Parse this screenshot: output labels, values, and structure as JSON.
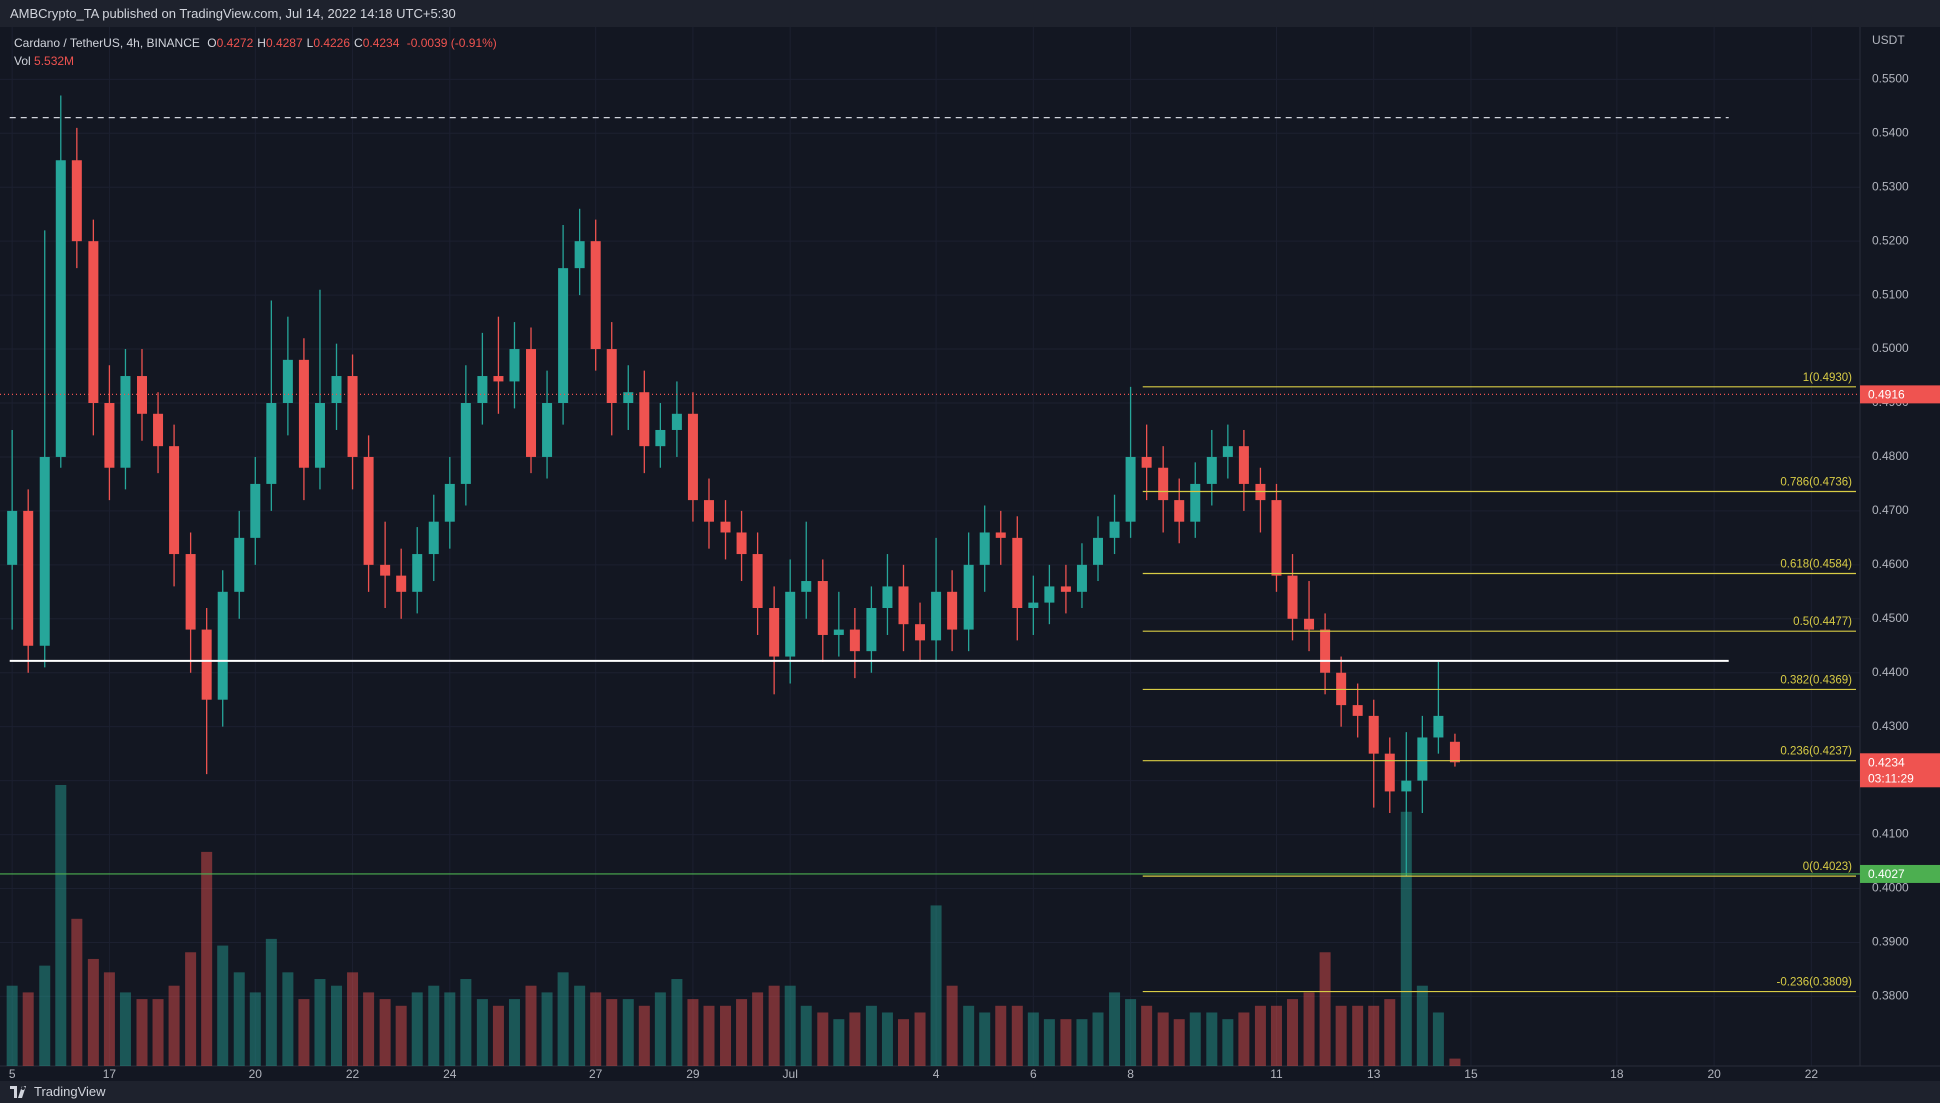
{
  "header": {
    "publisher": "AMBCrypto_TA published on TradingView.com, Jul 14, 2022 14:18 UTC+5:30"
  },
  "legend": {
    "symbol": "Cardano / TetherUS, 4h, BINANCE",
    "ohlc": [
      {
        "label": "O",
        "value": 0.4272
      },
      {
        "label": "H",
        "value": 0.4287
      },
      {
        "label": "L",
        "value": 0.4226
      },
      {
        "label": "C",
        "value": 0.4234
      }
    ],
    "change": "-0.0039 (-0.91%)",
    "volume_label": "Vol",
    "volume_value": "5.532M"
  },
  "footer": {
    "brand": "TradingView"
  },
  "chart_data": {
    "type": "candlestick",
    "currency": "USDT",
    "up_color": "#26a69a",
    "down_color": "#ef5350",
    "grid": true,
    "xlim": [
      -0.25,
      38
    ],
    "ylim": [
      0.3671,
      0.5597
    ],
    "xticks": [
      {
        "value": 0,
        "label": "5"
      },
      {
        "value": 2,
        "label": "17"
      },
      {
        "value": 5,
        "label": "20"
      },
      {
        "value": 7,
        "label": "22"
      },
      {
        "value": 9,
        "label": "24"
      },
      {
        "value": 12,
        "label": "27"
      },
      {
        "value": 14,
        "label": "29"
      },
      {
        "value": 16,
        "label": "Jul"
      },
      {
        "value": 19,
        "label": "4"
      },
      {
        "value": 21,
        "label": "6"
      },
      {
        "value": 23,
        "label": "8"
      },
      {
        "value": 26,
        "label": "11"
      },
      {
        "value": 28,
        "label": "13"
      },
      {
        "value": 30,
        "label": "15"
      },
      {
        "value": 33,
        "label": "18"
      },
      {
        "value": 35,
        "label": "20"
      },
      {
        "value": 37,
        "label": "22"
      }
    ],
    "yticks": [
      {
        "value": 0.38,
        "label": "0.3800"
      },
      {
        "value": 0.39,
        "label": "0.3900"
      },
      {
        "value": 0.4,
        "label": "0.4000"
      },
      {
        "value": 0.41,
        "label": "0.4100"
      },
      {
        "value": 0.42,
        "label": "0.4200"
      },
      {
        "value": 0.43,
        "label": "0.4300"
      },
      {
        "value": 0.44,
        "label": "0.4400"
      },
      {
        "value": 0.45,
        "label": "0.4500"
      },
      {
        "value": 0.46,
        "label": "0.4600"
      },
      {
        "value": 0.47,
        "label": "0.4700"
      },
      {
        "value": 0.48,
        "label": "0.4800"
      },
      {
        "value": 0.49,
        "label": "0.4900"
      },
      {
        "value": 0.5,
        "label": "0.5000"
      },
      {
        "value": 0.51,
        "label": "0.5100"
      },
      {
        "value": 0.52,
        "label": "0.5200"
      },
      {
        "value": 0.53,
        "label": "0.5300"
      },
      {
        "value": 0.54,
        "label": "0.5400"
      },
      {
        "value": 0.55,
        "label": "0.5500"
      }
    ],
    "x": [
      0,
      0.33,
      0.67,
      1,
      1.33,
      1.67,
      2,
      2.33,
      2.67,
      3,
      3.33,
      3.67,
      4,
      4.33,
      4.67,
      5,
      5.33,
      5.67,
      6,
      6.33,
      6.67,
      7,
      7.33,
      7.67,
      8,
      8.33,
      8.67,
      9,
      9.33,
      9.67,
      10,
      10.33,
      10.67,
      11,
      11.33,
      11.67,
      12,
      12.33,
      12.67,
      13,
      13.33,
      13.67,
      14,
      14.33,
      14.67,
      15,
      15.33,
      15.67,
      16,
      16.33,
      16.67,
      17,
      17.33,
      17.67,
      18,
      18.33,
      18.67,
      19,
      19.33,
      19.67,
      20,
      20.33,
      20.67,
      21,
      21.33,
      21.67,
      22,
      22.33,
      22.67,
      23,
      23.33,
      23.67,
      24,
      24.33,
      24.67,
      25,
      25.33,
      25.67,
      26,
      26.33,
      26.67,
      27,
      27.33,
      27.67,
      28,
      28.33,
      28.67,
      29,
      29.33,
      29.67
    ],
    "ohlc": [
      [
        0.46,
        0.485,
        0.448,
        0.47
      ],
      [
        0.47,
        0.474,
        0.44,
        0.445
      ],
      [
        0.445,
        0.522,
        0.441,
        0.48
      ],
      [
        0.48,
        0.547,
        0.478,
        0.535
      ],
      [
        0.535,
        0.541,
        0.515,
        0.52
      ],
      [
        0.52,
        0.524,
        0.484,
        0.49
      ],
      [
        0.49,
        0.497,
        0.472,
        0.478
      ],
      [
        0.478,
        0.5,
        0.474,
        0.495
      ],
      [
        0.495,
        0.5,
        0.483,
        0.488
      ],
      [
        0.488,
        0.492,
        0.477,
        0.482
      ],
      [
        0.482,
        0.486,
        0.456,
        0.462
      ],
      [
        0.462,
        0.466,
        0.44,
        0.448
      ],
      [
        0.448,
        0.452,
        0.4212,
        0.435
      ],
      [
        0.435,
        0.459,
        0.43,
        0.455
      ],
      [
        0.455,
        0.47,
        0.45,
        0.465
      ],
      [
        0.465,
        0.48,
        0.46,
        0.475
      ],
      [
        0.475,
        0.509,
        0.47,
        0.49
      ],
      [
        0.49,
        0.506,
        0.484,
        0.498
      ],
      [
        0.498,
        0.502,
        0.472,
        0.478
      ],
      [
        0.478,
        0.511,
        0.474,
        0.49
      ],
      [
        0.49,
        0.501,
        0.485,
        0.495
      ],
      [
        0.495,
        0.499,
        0.474,
        0.48
      ],
      [
        0.48,
        0.484,
        0.455,
        0.46
      ],
      [
        0.46,
        0.468,
        0.452,
        0.458
      ],
      [
        0.458,
        0.463,
        0.45,
        0.455
      ],
      [
        0.455,
        0.467,
        0.451,
        0.462
      ],
      [
        0.462,
        0.473,
        0.457,
        0.468
      ],
      [
        0.468,
        0.48,
        0.463,
        0.475
      ],
      [
        0.475,
        0.497,
        0.471,
        0.49
      ],
      [
        0.49,
        0.503,
        0.486,
        0.495
      ],
      [
        0.495,
        0.506,
        0.488,
        0.494
      ],
      [
        0.494,
        0.505,
        0.489,
        0.5
      ],
      [
        0.5,
        0.504,
        0.477,
        0.48
      ],
      [
        0.48,
        0.496,
        0.476,
        0.49
      ],
      [
        0.49,
        0.523,
        0.486,
        0.515
      ],
      [
        0.515,
        0.526,
        0.51,
        0.52
      ],
      [
        0.52,
        0.524,
        0.496,
        0.5
      ],
      [
        0.5,
        0.505,
        0.484,
        0.49
      ],
      [
        0.49,
        0.497,
        0.485,
        0.492
      ],
      [
        0.492,
        0.496,
        0.477,
        0.482
      ],
      [
        0.482,
        0.49,
        0.478,
        0.485
      ],
      [
        0.485,
        0.494,
        0.48,
        0.488
      ],
      [
        0.488,
        0.492,
        0.468,
        0.472
      ],
      [
        0.472,
        0.476,
        0.463,
        0.468
      ],
      [
        0.468,
        0.472,
        0.461,
        0.466
      ],
      [
        0.466,
        0.47,
        0.457,
        0.462
      ],
      [
        0.462,
        0.466,
        0.447,
        0.452
      ],
      [
        0.452,
        0.456,
        0.436,
        0.443
      ],
      [
        0.443,
        0.461,
        0.438,
        0.455
      ],
      [
        0.455,
        0.468,
        0.45,
        0.457
      ],
      [
        0.457,
        0.461,
        0.442,
        0.447
      ],
      [
        0.447,
        0.455,
        0.443,
        0.448
      ],
      [
        0.448,
        0.452,
        0.439,
        0.444
      ],
      [
        0.444,
        0.456,
        0.44,
        0.452
      ],
      [
        0.452,
        0.462,
        0.447,
        0.456
      ],
      [
        0.456,
        0.46,
        0.444,
        0.449
      ],
      [
        0.449,
        0.453,
        0.442,
        0.446
      ],
      [
        0.446,
        0.465,
        0.442,
        0.455
      ],
      [
        0.455,
        0.459,
        0.444,
        0.448
      ],
      [
        0.448,
        0.466,
        0.444,
        0.46
      ],
      [
        0.46,
        0.471,
        0.455,
        0.466
      ],
      [
        0.466,
        0.47,
        0.46,
        0.465
      ],
      [
        0.465,
        0.469,
        0.446,
        0.452
      ],
      [
        0.452,
        0.458,
        0.447,
        0.453
      ],
      [
        0.453,
        0.46,
        0.449,
        0.456
      ],
      [
        0.456,
        0.46,
        0.451,
        0.455
      ],
      [
        0.455,
        0.464,
        0.452,
        0.46
      ],
      [
        0.46,
        0.469,
        0.457,
        0.465
      ],
      [
        0.465,
        0.473,
        0.462,
        0.468
      ],
      [
        0.468,
        0.493,
        0.465,
        0.48
      ],
      [
        0.48,
        0.486,
        0.472,
        0.478
      ],
      [
        0.478,
        0.482,
        0.466,
        0.472
      ],
      [
        0.472,
        0.476,
        0.464,
        0.468
      ],
      [
        0.468,
        0.479,
        0.465,
        0.475
      ],
      [
        0.475,
        0.485,
        0.471,
        0.48
      ],
      [
        0.48,
        0.486,
        0.476,
        0.482
      ],
      [
        0.482,
        0.485,
        0.47,
        0.475
      ],
      [
        0.475,
        0.478,
        0.466,
        0.472
      ],
      [
        0.472,
        0.475,
        0.455,
        0.458
      ],
      [
        0.458,
        0.462,
        0.446,
        0.45
      ],
      [
        0.45,
        0.457,
        0.444,
        0.448
      ],
      [
        0.448,
        0.451,
        0.436,
        0.44
      ],
      [
        0.44,
        0.443,
        0.43,
        0.434
      ],
      [
        0.434,
        0.438,
        0.428,
        0.432
      ],
      [
        0.432,
        0.435,
        0.415,
        0.425
      ],
      [
        0.425,
        0.428,
        0.414,
        0.418
      ],
      [
        0.418,
        0.429,
        0.4023,
        0.42
      ],
      [
        0.42,
        0.432,
        0.414,
        0.428
      ],
      [
        0.428,
        0.442,
        0.425,
        0.432
      ],
      [
        0.4272,
        0.4287,
        0.4226,
        0.4234
      ]
    ],
    "volume": [
      60,
      55,
      75,
      210,
      110,
      80,
      70,
      55,
      50,
      50,
      60,
      85,
      160,
      90,
      70,
      55,
      95,
      70,
      50,
      65,
      60,
      70,
      55,
      50,
      45,
      55,
      60,
      55,
      65,
      50,
      45,
      50,
      60,
      55,
      70,
      60,
      55,
      50,
      50,
      45,
      55,
      65,
      50,
      45,
      45,
      50,
      55,
      60,
      60,
      45,
      40,
      35,
      40,
      45,
      40,
      35,
      40,
      120,
      60,
      45,
      40,
      45,
      45,
      40,
      35,
      35,
      35,
      40,
      55,
      50,
      45,
      40,
      35,
      40,
      40,
      35,
      40,
      45,
      45,
      50,
      55,
      85,
      45,
      45,
      45,
      50,
      190,
      60,
      40,
      5.532
    ],
    "price_lines": [
      {
        "value": 0.5429,
        "color": "#d1d4dc",
        "style": "dashed",
        "x": [
          -0.05,
          35.3
        ]
      },
      {
        "value": 0.4422,
        "color": "#ffffff",
        "style": "solid",
        "x": [
          -0.05,
          35.3
        ]
      },
      {
        "value": 0.4916,
        "color": "#ef5350",
        "style": "dotted"
      },
      {
        "value": 0.4027,
        "color": "#4caf50",
        "style": "solid"
      }
    ],
    "last_price": {
      "value": 0.4234,
      "countdown": "03:11:29",
      "color": "#ef5350"
    },
    "fib": {
      "start": 23.25,
      "color": "#d8cc45",
      "levels": [
        {
          "value": 0.493,
          "label": "1(0.4930)"
        },
        {
          "value": 0.4736,
          "label": "0.786(0.4736)"
        },
        {
          "value": 0.4584,
          "label": "0.618(0.4584)"
        },
        {
          "value": 0.4477,
          "label": "0.5(0.4477)"
        },
        {
          "value": 0.4369,
          "label": "0.382(0.4369)"
        },
        {
          "value": 0.4237,
          "label": "0.236(0.4237)"
        },
        {
          "value": 0.4023,
          "label": "0(0.4023)"
        },
        {
          "value": 0.3809,
          "label": "-0.236(0.3809)"
        }
      ]
    }
  }
}
